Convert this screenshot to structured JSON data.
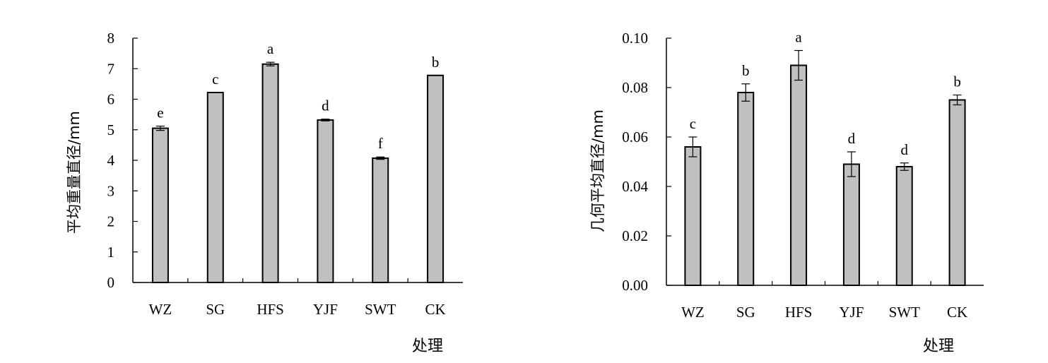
{
  "chart_data": [
    {
      "type": "bar",
      "categories": [
        "WZ",
        "SG",
        "HFS",
        "YJF",
        "SWT",
        "CK"
      ],
      "values": [
        5.05,
        6.22,
        7.15,
        5.32,
        4.07,
        6.78
      ],
      "errors": [
        0.07,
        0.0,
        0.06,
        0.03,
        0.04,
        0.0
      ],
      "significance": [
        "e",
        "c",
        "a",
        "d",
        "f",
        "b"
      ],
      "ylabel": "平均重量直径/mm",
      "xlabel": "处理",
      "ylim": [
        0,
        8
      ],
      "yticks": [
        "0",
        "1",
        "2",
        "3",
        "4",
        "5",
        "6",
        "7",
        "8"
      ],
      "bar_color": "#c0c0c0",
      "grid": false
    },
    {
      "type": "bar",
      "categories": [
        "WZ",
        "SG",
        "HFS",
        "YJF",
        "SWT",
        "CK"
      ],
      "values": [
        0.056,
        0.078,
        0.089,
        0.049,
        0.048,
        0.075
      ],
      "errors": [
        0.004,
        0.0035,
        0.006,
        0.005,
        0.0015,
        0.002
      ],
      "significance": [
        "c",
        "b",
        "a",
        "d",
        "d",
        "b"
      ],
      "ylabel": "几何平均直径/mm",
      "xlabel": "处理",
      "ylim": [
        0,
        0.1
      ],
      "yticks": [
        "0.00",
        "0.02",
        "0.04",
        "0.06",
        "0.08",
        "0.10"
      ],
      "bar_color": "#c0c0c0",
      "grid": false
    }
  ]
}
